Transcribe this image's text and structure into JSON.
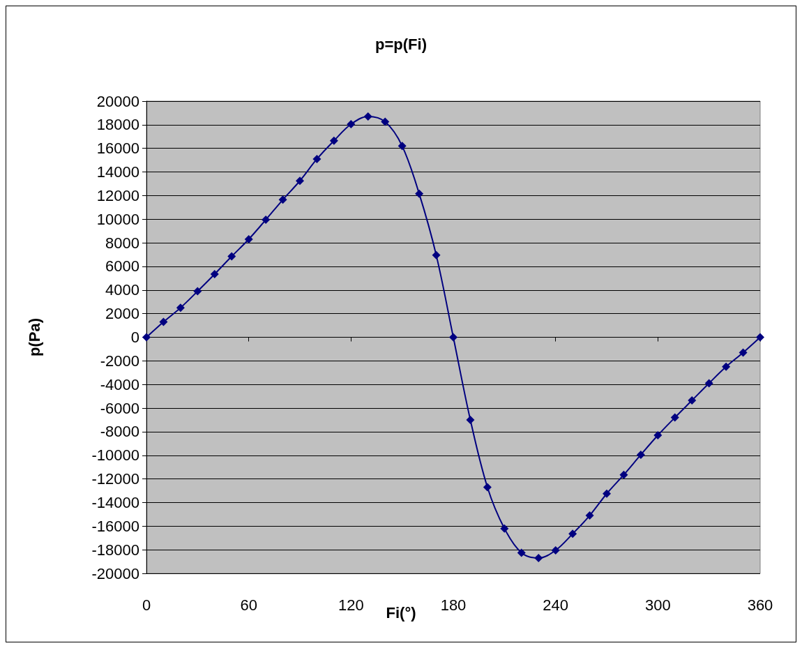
{
  "chart_data": {
    "type": "line",
    "title": "p=p(Fi)",
    "xlabel": "Fi(°)",
    "ylabel": "p(Pa)",
    "x": [
      0,
      10,
      20,
      30,
      40,
      50,
      60,
      70,
      80,
      90,
      100,
      110,
      120,
      130,
      140,
      150,
      160,
      170,
      180,
      190,
      200,
      210,
      220,
      230,
      240,
      250,
      260,
      270,
      280,
      290,
      300,
      310,
      320,
      330,
      340,
      350,
      360
    ],
    "values": [
      0,
      1300,
      2500,
      3900,
      5350,
      6850,
      8300,
      9950,
      11650,
      13250,
      15100,
      16650,
      18050,
      18700,
      18250,
      16200,
      12150,
      6950,
      0,
      -7000,
      -12700,
      -16200,
      -18250,
      -18700,
      -18050,
      -16650,
      -15100,
      -13250,
      -11650,
      -9950,
      -8300,
      -6800,
      -5350,
      -3900,
      -2500,
      -1300,
      0
    ],
    "color": "#000080",
    "marker": "diamond",
    "line_style": "solid",
    "grid": "y",
    "xlim": [
      0,
      360
    ],
    "xticks": [
      0,
      60,
      120,
      180,
      240,
      300,
      360
    ],
    "ylim": [
      -20000,
      20000
    ],
    "yticks": [
      -20000,
      -18000,
      -16000,
      -14000,
      -12000,
      -10000,
      -8000,
      -6000,
      -4000,
      -2000,
      0,
      2000,
      4000,
      6000,
      8000,
      10000,
      12000,
      14000,
      16000,
      18000,
      20000
    ]
  }
}
